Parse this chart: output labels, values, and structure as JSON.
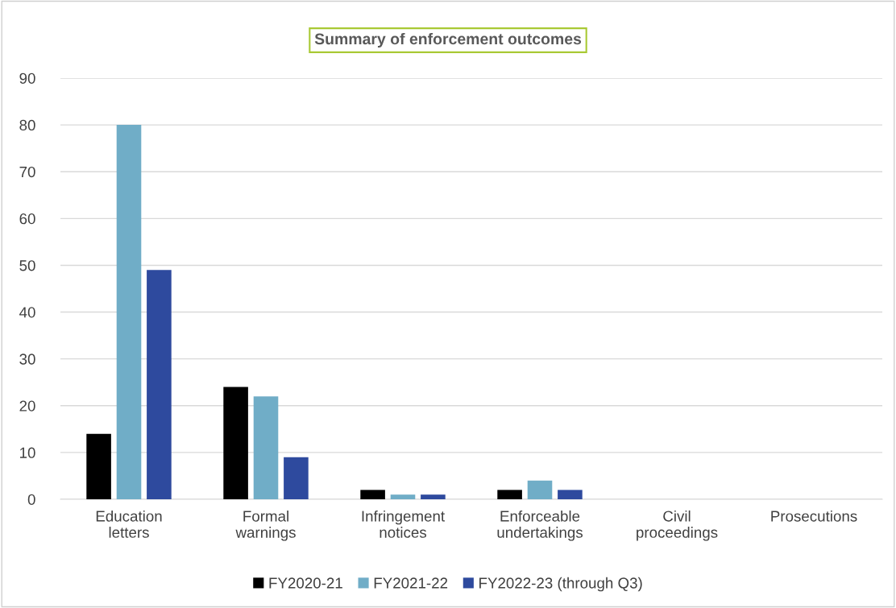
{
  "chart_data": {
    "type": "bar",
    "title": "Summary of enforcement outcomes",
    "categories": [
      "Education letters",
      "Formal warnings",
      "Infringement notices",
      "Enforceable undertakings",
      "Civil proceedings",
      "Prosecutions"
    ],
    "series": [
      {
        "name": "FY2020-21",
        "color": "#000000",
        "values": [
          14,
          24,
          2,
          2,
          0,
          0
        ]
      },
      {
        "name": "FY2021-22",
        "color": "#70adc7",
        "values": [
          80,
          22,
          1,
          4,
          0,
          0
        ]
      },
      {
        "name": "FY2022-23 (through Q3)",
        "color": "#2e4a9e",
        "values": [
          49,
          9,
          1,
          2,
          0,
          0
        ]
      }
    ],
    "ylim": [
      0,
      90
    ],
    "yticks": [
      0,
      10,
      20,
      30,
      40,
      50,
      60,
      70,
      80,
      90
    ],
    "grid": "y",
    "legend": "bottom"
  }
}
